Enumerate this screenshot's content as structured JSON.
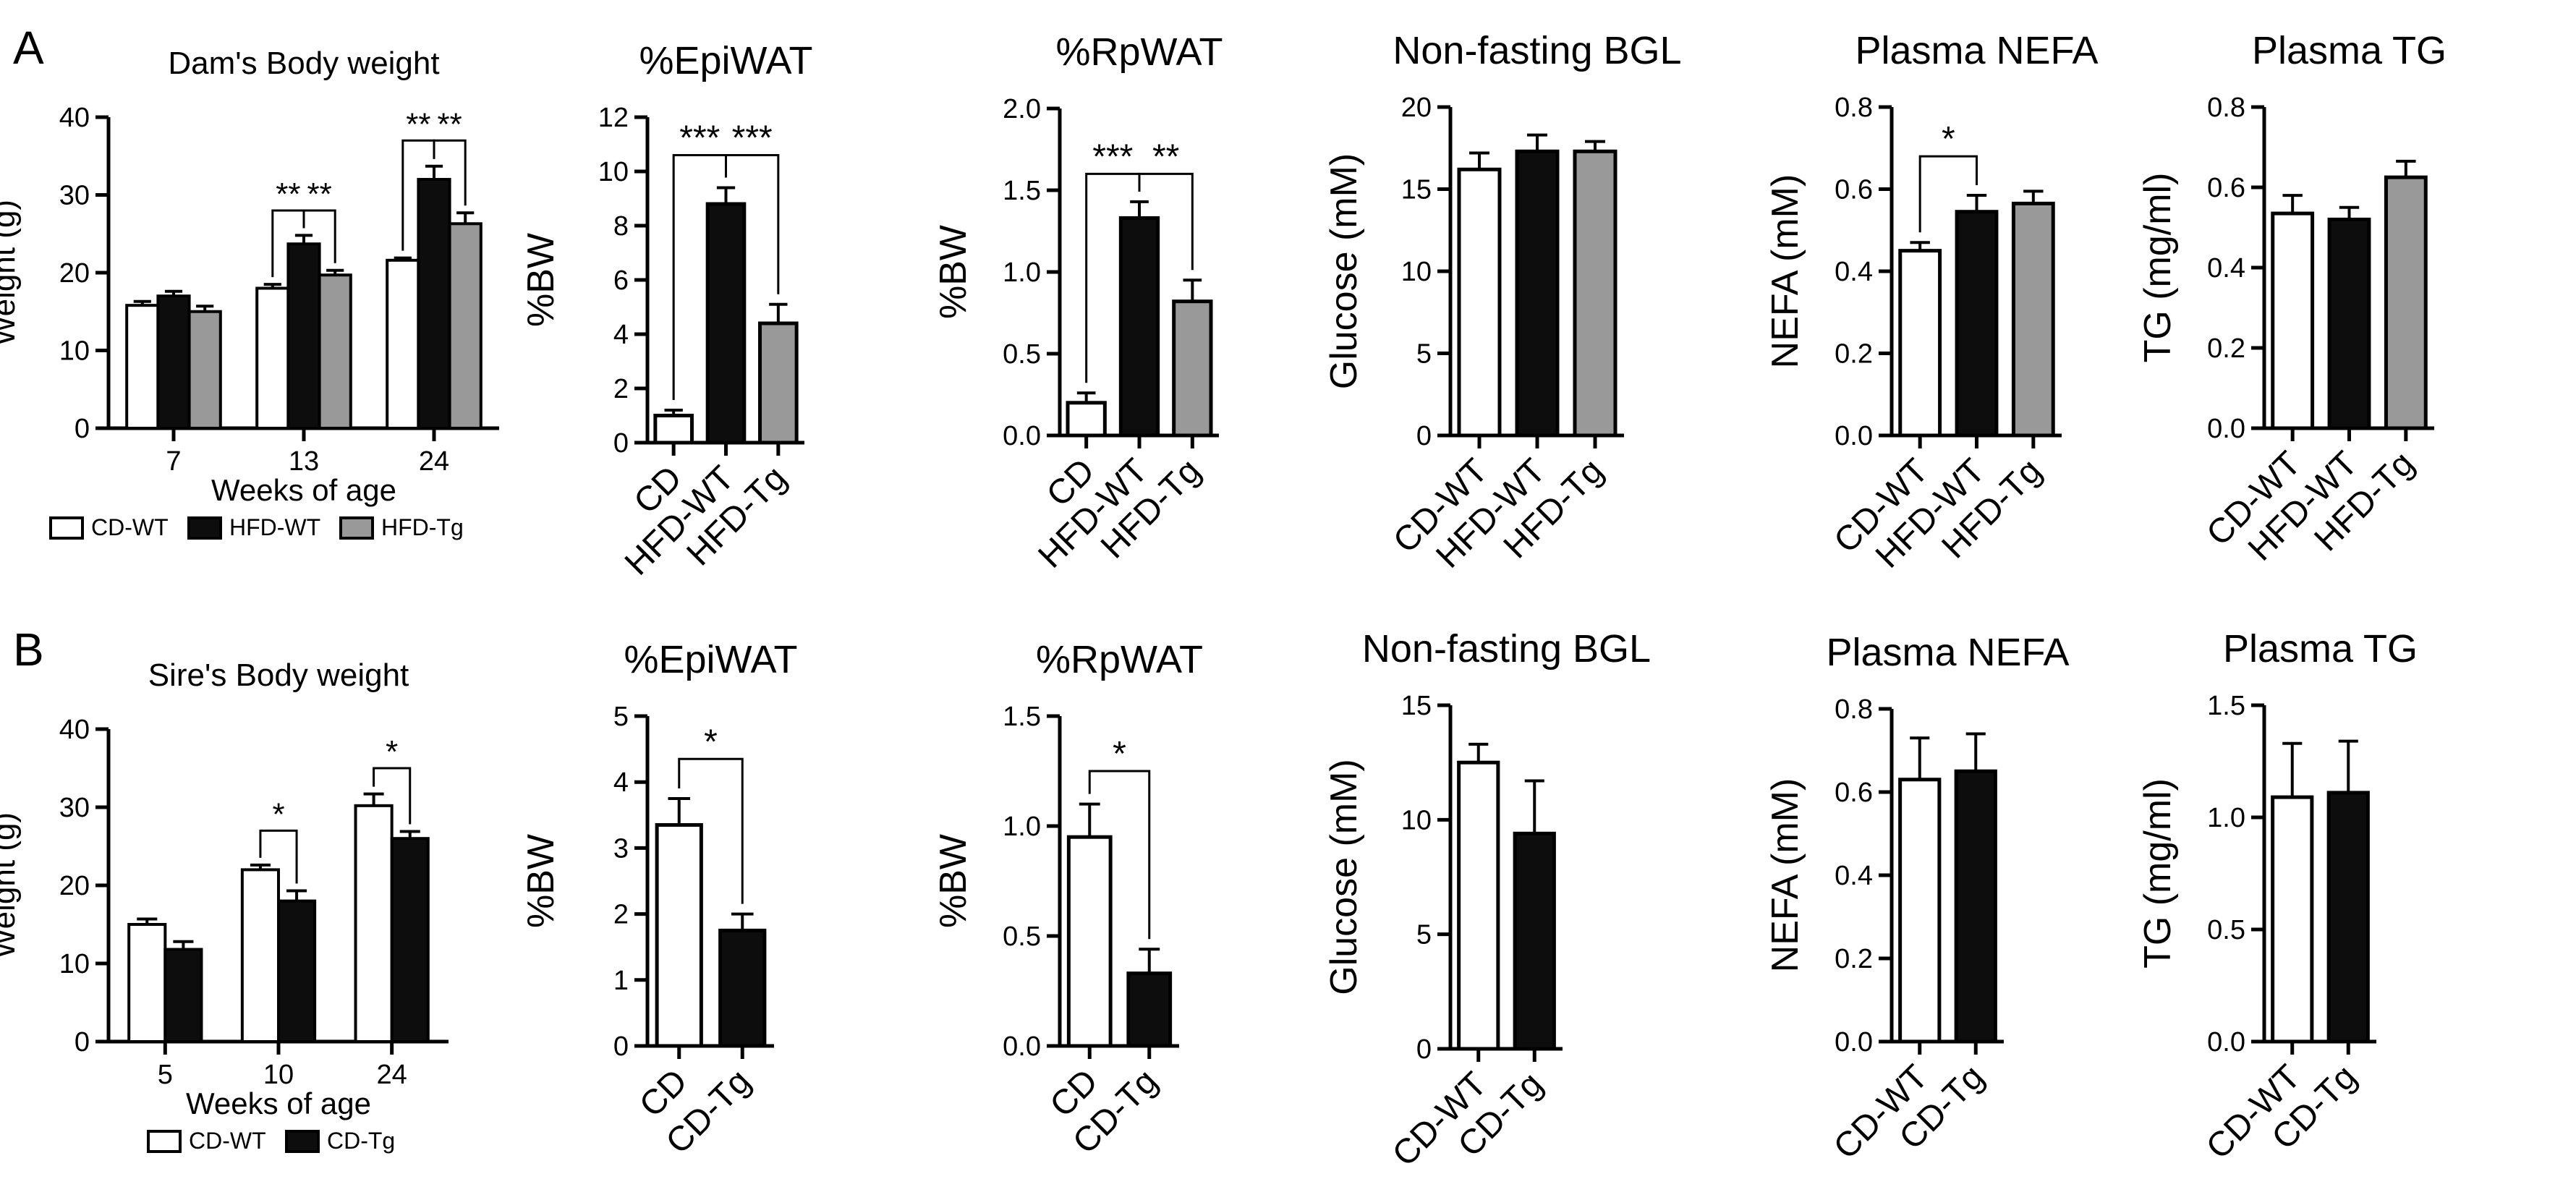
{
  "panels": [
    {
      "label": "A"
    },
    {
      "label": "B"
    }
  ],
  "colors": {
    "white": "#ffffff",
    "black": "#0d0d0d",
    "gray": "#999999",
    "ink": "#000000"
  },
  "chart_data": [
    {
      "type": "bar",
      "id": "a1",
      "title": "Dam's Body weight",
      "xlabel": "Weeks of age",
      "ylabel": "Weight (g)",
      "categories": [
        "7",
        "13",
        "24"
      ],
      "ylim": [
        0,
        40
      ],
      "yticks": [
        0,
        10,
        20,
        30,
        40
      ],
      "series": [
        {
          "name": "CD-WT",
          "color": "white",
          "values": [
            15.8,
            18.0,
            21.6
          ],
          "errors": [
            0.5,
            0.5,
            0.3
          ]
        },
        {
          "name": "HFD-WT",
          "color": "black",
          "values": [
            17.0,
            23.7,
            32.0
          ],
          "errors": [
            0.6,
            1.1,
            1.7
          ]
        },
        {
          "name": "HFD-Tg",
          "color": "gray",
          "values": [
            15.0,
            19.7,
            26.3
          ],
          "errors": [
            0.7,
            0.6,
            1.4
          ]
        }
      ],
      "legend": [
        {
          "name": "CD-WT",
          "color": "white"
        },
        {
          "name": "HFD-WT",
          "color": "black"
        },
        {
          "name": "HFD-Tg",
          "color": "gray"
        }
      ],
      "annotations": [
        {
          "text": "**",
          "group": 1,
          "from": 0,
          "to": 1,
          "y": 28
        },
        {
          "text": "**",
          "group": 1,
          "from": 1,
          "to": 2,
          "y": 28
        },
        {
          "text": "**",
          "group": 2,
          "from": 0,
          "to": 1,
          "y": 37
        },
        {
          "text": "**",
          "group": 2,
          "from": 1,
          "to": 2,
          "y": 37
        }
      ]
    },
    {
      "type": "bar",
      "id": "a2",
      "title": "%EpiWAT",
      "ylabel": "%BW",
      "categories": [
        "CD",
        "HFD-WT",
        "HFD-Tg"
      ],
      "ylim": [
        0,
        12
      ],
      "yticks": [
        0,
        2,
        4,
        6,
        8,
        10,
        12
      ],
      "values": [
        1.0,
        8.8,
        4.4
      ],
      "errors": [
        0.2,
        0.6,
        0.7
      ],
      "colors": [
        "white",
        "black",
        "gray"
      ],
      "annotations": [
        {
          "text": "***",
          "from": 0,
          "to": 1,
          "y": 10.6
        },
        {
          "text": "***",
          "from": 1,
          "to": 2,
          "y": 10.6
        }
      ]
    },
    {
      "type": "bar",
      "id": "a3",
      "title": "%RpWAT",
      "ylabel": "%BW",
      "categories": [
        "CD",
        "HFD-WT",
        "HFD-Tg"
      ],
      "ylim": [
        0,
        2.0
      ],
      "yticks": [
        0,
        0.5,
        1.0,
        1.5,
        2.0
      ],
      "values": [
        0.2,
        1.33,
        0.82
      ],
      "errors": [
        0.06,
        0.1,
        0.13
      ],
      "colors": [
        "white",
        "black",
        "gray"
      ],
      "annotations": [
        {
          "text": "***",
          "from": 0,
          "to": 1,
          "y": 1.6
        },
        {
          "text": "**",
          "from": 1,
          "to": 2,
          "y": 1.6
        }
      ]
    },
    {
      "type": "bar",
      "id": "a4",
      "title": "Non-fasting BGL",
      "ylabel": "Glucose (mM)",
      "categories": [
        "CD-WT",
        "HFD-WT",
        "HFD-Tg"
      ],
      "ylim": [
        0,
        20
      ],
      "yticks": [
        0,
        5,
        10,
        15,
        20
      ],
      "values": [
        16.2,
        17.3,
        17.3
      ],
      "errors": [
        1.0,
        1.0,
        0.6
      ],
      "colors": [
        "white",
        "black",
        "gray"
      ],
      "annotations": []
    },
    {
      "type": "bar",
      "id": "a5",
      "title": "Plasma NEFA",
      "ylabel": "NEFA (mM)",
      "categories": [
        "CD-WT",
        "HFD-WT",
        "HFD-Tg"
      ],
      "ylim": [
        0,
        0.8
      ],
      "yticks": [
        0.0,
        0.2,
        0.4,
        0.6,
        0.8
      ],
      "values": [
        0.45,
        0.545,
        0.565
      ],
      "errors": [
        0.02,
        0.04,
        0.03
      ],
      "colors": [
        "white",
        "black",
        "gray"
      ],
      "annotations": [
        {
          "text": "*",
          "from": 0,
          "to": 1,
          "y": 0.68
        }
      ]
    },
    {
      "type": "bar",
      "id": "a6",
      "title": "Plasma TG",
      "ylabel": "TG (mg/ml)",
      "categories": [
        "CD-WT",
        "HFD-WT",
        "HFD-Tg"
      ],
      "ylim": [
        0,
        0.8
      ],
      "yticks": [
        0.0,
        0.2,
        0.4,
        0.6,
        0.8
      ],
      "values": [
        0.535,
        0.52,
        0.625
      ],
      "errors": [
        0.045,
        0.03,
        0.04
      ],
      "colors": [
        "white",
        "black",
        "gray"
      ],
      "annotations": []
    },
    {
      "type": "bar",
      "id": "b1",
      "title": "Sire's Body weight",
      "xlabel": "Weeks of age",
      "ylabel": "Weight (g)",
      "categories": [
        "5",
        "10",
        "24"
      ],
      "ylim": [
        0,
        40
      ],
      "yticks": [
        0,
        10,
        20,
        30,
        40
      ],
      "series": [
        {
          "name": "CD-WT",
          "color": "white",
          "values": [
            15.0,
            22.0,
            30.2
          ],
          "errors": [
            0.7,
            0.6,
            1.5
          ]
        },
        {
          "name": "CD-Tg",
          "color": "black",
          "values": [
            11.8,
            18.0,
            26.0
          ],
          "errors": [
            1.0,
            1.3,
            0.9
          ]
        }
      ],
      "legend": [
        {
          "name": "CD-WT",
          "color": "white"
        },
        {
          "name": "CD-Tg",
          "color": "black"
        }
      ],
      "annotations": [
        {
          "text": "*",
          "group": 1,
          "from": 0,
          "to": 1,
          "y": 27
        },
        {
          "text": "*",
          "group": 2,
          "from": 0,
          "to": 1,
          "y": 35
        }
      ]
    },
    {
      "type": "bar",
      "id": "b2",
      "title": "%EpiWAT",
      "ylabel": "%BW",
      "categories": [
        "CD",
        "CD-Tg"
      ],
      "ylim": [
        0,
        5
      ],
      "yticks": [
        0,
        1,
        2,
        3,
        4,
        5
      ],
      "values": [
        3.35,
        1.75
      ],
      "errors": [
        0.4,
        0.25
      ],
      "colors": [
        "white",
        "black"
      ],
      "annotations": [
        {
          "text": "*",
          "from": 0,
          "to": 1,
          "y": 4.35
        }
      ]
    },
    {
      "type": "bar",
      "id": "b3",
      "title": "%RpWAT",
      "ylabel": "%BW",
      "categories": [
        "CD",
        "CD-Tg"
      ],
      "ylim": [
        0,
        1.5
      ],
      "yticks": [
        0.0,
        0.5,
        1.0,
        1.5
      ],
      "values": [
        0.95,
        0.33
      ],
      "errors": [
        0.15,
        0.11
      ],
      "colors": [
        "white",
        "black"
      ],
      "annotations": [
        {
          "text": "*",
          "from": 0,
          "to": 1,
          "y": 1.25
        }
      ]
    },
    {
      "type": "bar",
      "id": "b4",
      "title": "Non-fasting BGL",
      "ylabel": "Glucose (mM)",
      "categories": [
        "CD-WT",
        "CD-Tg"
      ],
      "ylim": [
        0,
        15
      ],
      "yticks": [
        0,
        5,
        10,
        15
      ],
      "values": [
        12.5,
        9.4
      ],
      "errors": [
        0.8,
        2.3
      ],
      "colors": [
        "white",
        "black"
      ],
      "annotations": []
    },
    {
      "type": "bar",
      "id": "b5",
      "title": "Plasma NEFA",
      "ylabel": "NEFA (mM)",
      "categories": [
        "CD-WT",
        "CD-Tg"
      ],
      "ylim": [
        0,
        0.8
      ],
      "yticks": [
        0.0,
        0.2,
        0.4,
        0.6,
        0.8
      ],
      "values": [
        0.63,
        0.65
      ],
      "errors": [
        0.1,
        0.09
      ],
      "colors": [
        "white",
        "black"
      ],
      "annotations": []
    },
    {
      "type": "bar",
      "id": "b6",
      "title": "Plasma TG",
      "ylabel": "TG (mg/ml)",
      "categories": [
        "CD-WT",
        "CD-Tg"
      ],
      "ylim": [
        0,
        1.5
      ],
      "yticks": [
        0.0,
        0.5,
        1.0,
        1.5
      ],
      "values": [
        1.09,
        1.11
      ],
      "errors": [
        0.24,
        0.23
      ],
      "colors": [
        "white",
        "black"
      ],
      "annotations": []
    }
  ]
}
